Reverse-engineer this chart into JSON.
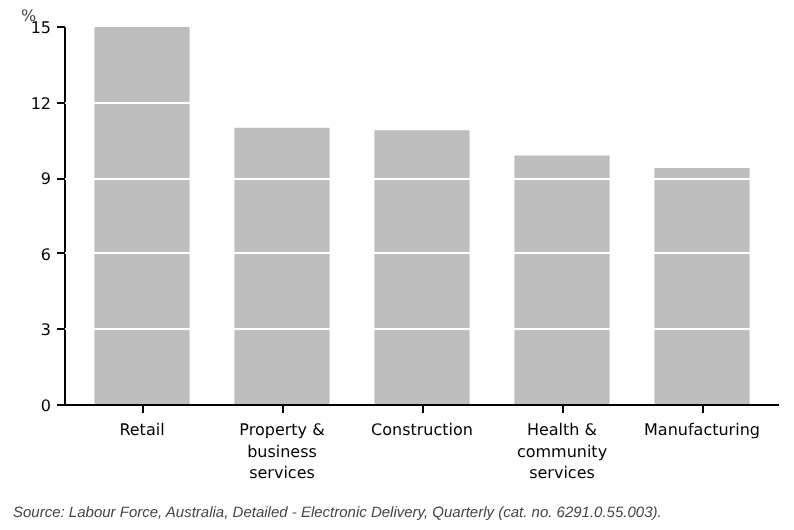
{
  "chart_data": {
    "type": "bar",
    "ylabel": "%",
    "categories": [
      "Retail",
      "Property &\nbusiness\nservices",
      "Construction",
      "Health &\ncommunity\nservices",
      "Manufacturing"
    ],
    "values": [
      15.0,
      11.0,
      10.9,
      9.9,
      9.4
    ],
    "color": "#bebebe",
    "ylim": [
      0,
      15
    ],
    "yticks": [
      0,
      3,
      6,
      9,
      12,
      15
    ],
    "grid": "y",
    "annotations": [
      "Source: Labour Force, Australia, Detailed - Electronic Delivery, Quarterly (cat. no. 6291.0.55.003)."
    ]
  }
}
